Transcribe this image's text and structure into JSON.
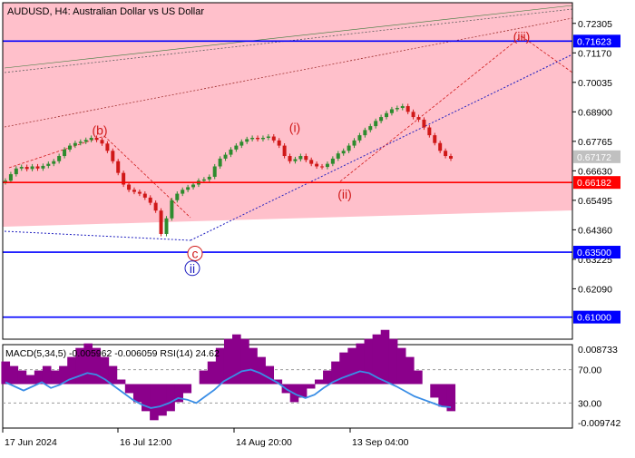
{
  "header": {
    "title": "AUDUSD, H4:  Australian Dollar vs US Dollar"
  },
  "colors": {
    "zone_fill": "#ffc0cb",
    "level_blue": "#0000ff",
    "level_red": "#ff0000",
    "bull_candle": "#2e8b2e",
    "bear_candle": "#d01818",
    "wave_label": "#d01818",
    "wave_label_blue": "#2020c0",
    "macd_hist": "#8b008b",
    "rsi_line": "#3a8ee6",
    "current_price_bg": "#c0c0c0"
  },
  "chart_data": [
    {
      "type": "candlestick",
      "symbol": "AUDUSD",
      "timeframe": "H4",
      "ylim": [
        0.6015,
        0.731
      ],
      "y_ticks": [
        "0.72305",
        "0.71170",
        "0.70035",
        "0.68900",
        "0.67765",
        "0.66630",
        "0.65495",
        "0.64360",
        "0.63225",
        "0.62090"
      ],
      "x_ticks": [
        "17 Jun 2024",
        "16 Jul 12:00",
        "14 Aug 20:00",
        "13 Sep 04:00"
      ],
      "current_price": "0.67172",
      "levels": [
        {
          "value": "0.71623",
          "color": "blue"
        },
        {
          "value": "0.66182",
          "color": "red"
        },
        {
          "value": "0.63500",
          "color": "blue"
        },
        {
          "value": "0.61000",
          "color": "blue"
        }
      ],
      "wave_labels": [
        {
          "label": "(b)",
          "price": 0.682
        },
        {
          "label": "(i)",
          "price": 0.683
        },
        {
          "label": "(ii)",
          "price": 0.6574
        },
        {
          "label": "(iii)",
          "price": 0.718
        },
        {
          "label": "c",
          "price": 0.6345
        },
        {
          "label": "ii",
          "price": 0.6288
        }
      ],
      "close_series": [
        0.6625,
        0.665,
        0.6672,
        0.6678,
        0.667,
        0.668,
        0.6672,
        0.6682,
        0.669,
        0.67,
        0.672,
        0.6745,
        0.676,
        0.677,
        0.6775,
        0.6782,
        0.679,
        0.6782,
        0.6768,
        0.674,
        0.67,
        0.6655,
        0.661,
        0.659,
        0.6582,
        0.6575,
        0.656,
        0.654,
        0.651,
        0.642,
        0.648,
        0.655,
        0.6575,
        0.659,
        0.66,
        0.661,
        0.6625,
        0.663,
        0.664,
        0.668,
        0.671,
        0.6725,
        0.6745,
        0.676,
        0.6775,
        0.6785,
        0.679,
        0.6785,
        0.679,
        0.6795,
        0.678,
        0.676,
        0.672,
        0.67,
        0.6708,
        0.672,
        0.6705,
        0.669,
        0.668,
        0.6678,
        0.669,
        0.671,
        0.673,
        0.674,
        0.676,
        0.678,
        0.68,
        0.682,
        0.6835,
        0.6855,
        0.687,
        0.6885,
        0.69,
        0.6905,
        0.6912,
        0.689,
        0.687,
        0.686,
        0.683,
        0.68,
        0.677,
        0.674,
        0.672,
        0.671
      ],
      "rsi_levels": [
        "70.00",
        "30.00"
      ]
    },
    {
      "type": "histogram+line",
      "title": "MACD(5,34,5) -0.005962 -0.006059 RSI(14) 24.62",
      "y_ticks": [
        "0.008733",
        "-0.009742"
      ],
      "histogram": [
        0.005,
        0.004,
        0.003,
        0.002,
        0.003,
        0.004,
        0.003,
        0.004,
        0.006,
        0.008,
        0.009,
        0.008,
        0.006,
        0.004,
        0.001,
        -0.002,
        -0.004,
        -0.006,
        -0.008,
        -0.007,
        -0.006,
        -0.004,
        -0.002,
        0.0,
        0.003,
        0.005,
        0.008,
        0.01,
        0.011,
        0.01,
        0.008,
        0.006,
        0.004,
        0.001,
        -0.002,
        -0.004,
        -0.003,
        -0.001,
        0.001,
        0.003,
        0.005,
        0.007,
        0.008,
        0.009,
        0.01,
        0.011,
        0.012,
        0.01,
        0.008,
        0.006,
        0.003,
        0.0,
        -0.003,
        -0.005,
        -0.006
      ],
      "rsi": [
        55,
        50,
        45,
        50,
        55,
        48,
        52,
        58,
        62,
        66,
        64,
        58,
        50,
        42,
        34,
        28,
        24,
        26,
        30,
        36,
        34,
        30,
        38,
        46,
        56,
        62,
        68,
        70,
        66,
        60,
        54,
        46,
        40,
        36,
        40,
        48,
        55,
        60,
        64,
        68,
        66,
        60,
        55,
        50,
        44,
        38,
        34,
        30,
        26,
        25
      ]
    }
  ]
}
